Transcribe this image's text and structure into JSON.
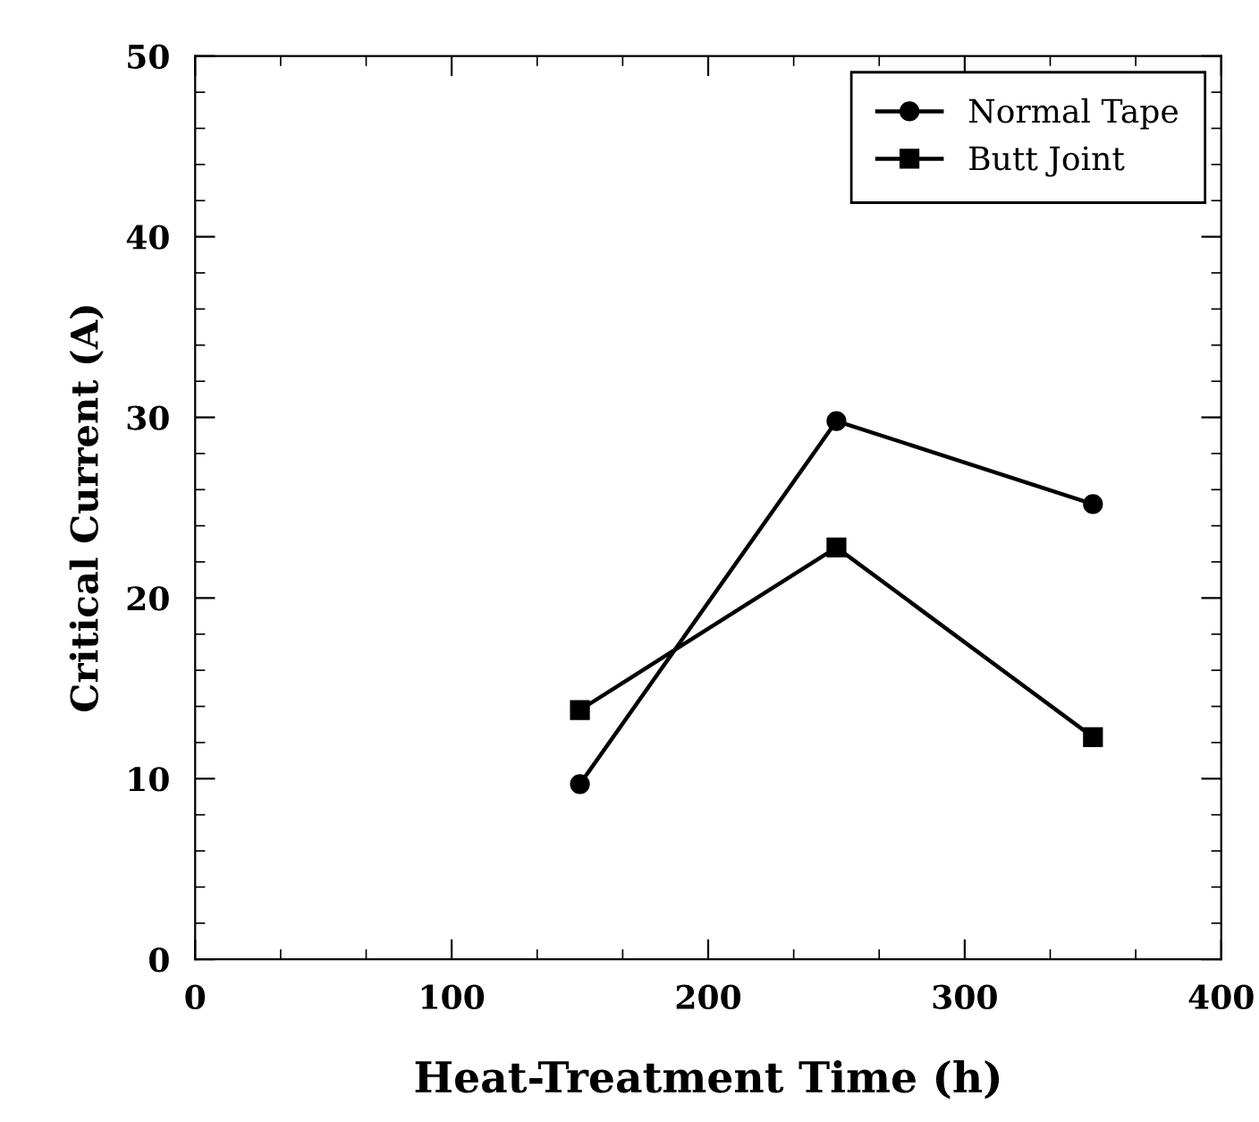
{
  "chart_data": {
    "type": "line",
    "xlabel": "Heat-Treatment Time (h)",
    "ylabel": "Critical Current (A)",
    "xlim": [
      0,
      400
    ],
    "xticks": [
      0,
      100,
      200,
      300,
      400
    ],
    "ylim": [
      0,
      50
    ],
    "yticks": [
      0,
      10,
      20,
      30,
      40,
      50
    ],
    "legend": "top right",
    "grid": false,
    "line_style": "solid",
    "series": [
      {
        "name": "Normal Tape",
        "color": "#000000",
        "marker": "circle",
        "x": [
          150,
          250,
          350
        ],
        "values": [
          9.7,
          29.8,
          25.2
        ]
      },
      {
        "name": "Butt Joint",
        "color": "#000000",
        "marker": "square",
        "x": [
          150,
          250,
          350
        ],
        "values": [
          13.8,
          22.8,
          12.3
        ]
      }
    ]
  }
}
